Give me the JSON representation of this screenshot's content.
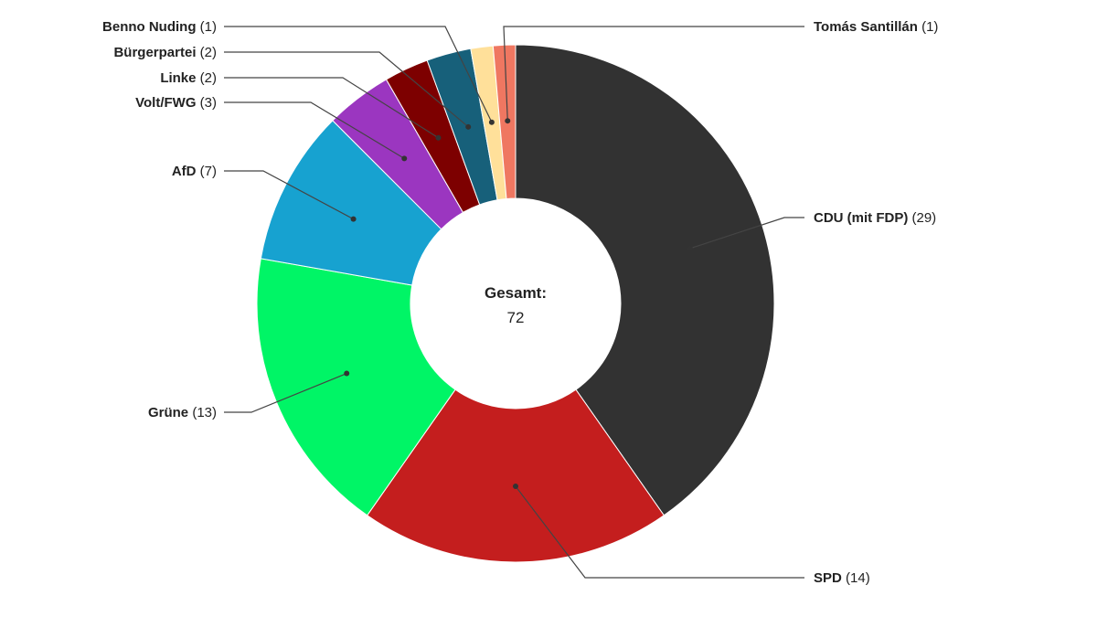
{
  "chart_data": {
    "type": "pie",
    "donut": true,
    "center_label": {
      "title": "Gesamt:",
      "value": "72"
    },
    "slices": [
      {
        "label": "CDU (mit FDP)",
        "value": 29,
        "color": "#323232"
      },
      {
        "label": "SPD",
        "value": 14,
        "color": "#c41e1e"
      },
      {
        "label": "Grüne",
        "value": 13,
        "color": "#00f566"
      },
      {
        "label": "AfD",
        "value": 7,
        "color": "#17a2d0"
      },
      {
        "label": "Volt/FWG",
        "value": 3,
        "color": "#9b36c0"
      },
      {
        "label": "Linke",
        "value": 2,
        "color": "#7d0000"
      },
      {
        "label": "Bürgerpartei",
        "value": 2,
        "color": "#17607a"
      },
      {
        "label": "Benno Nuding",
        "value": 1,
        "color": "#ffe09a"
      },
      {
        "label": "Tomás Santillán",
        "value": 1,
        "color": "#ef7761"
      }
    ]
  }
}
